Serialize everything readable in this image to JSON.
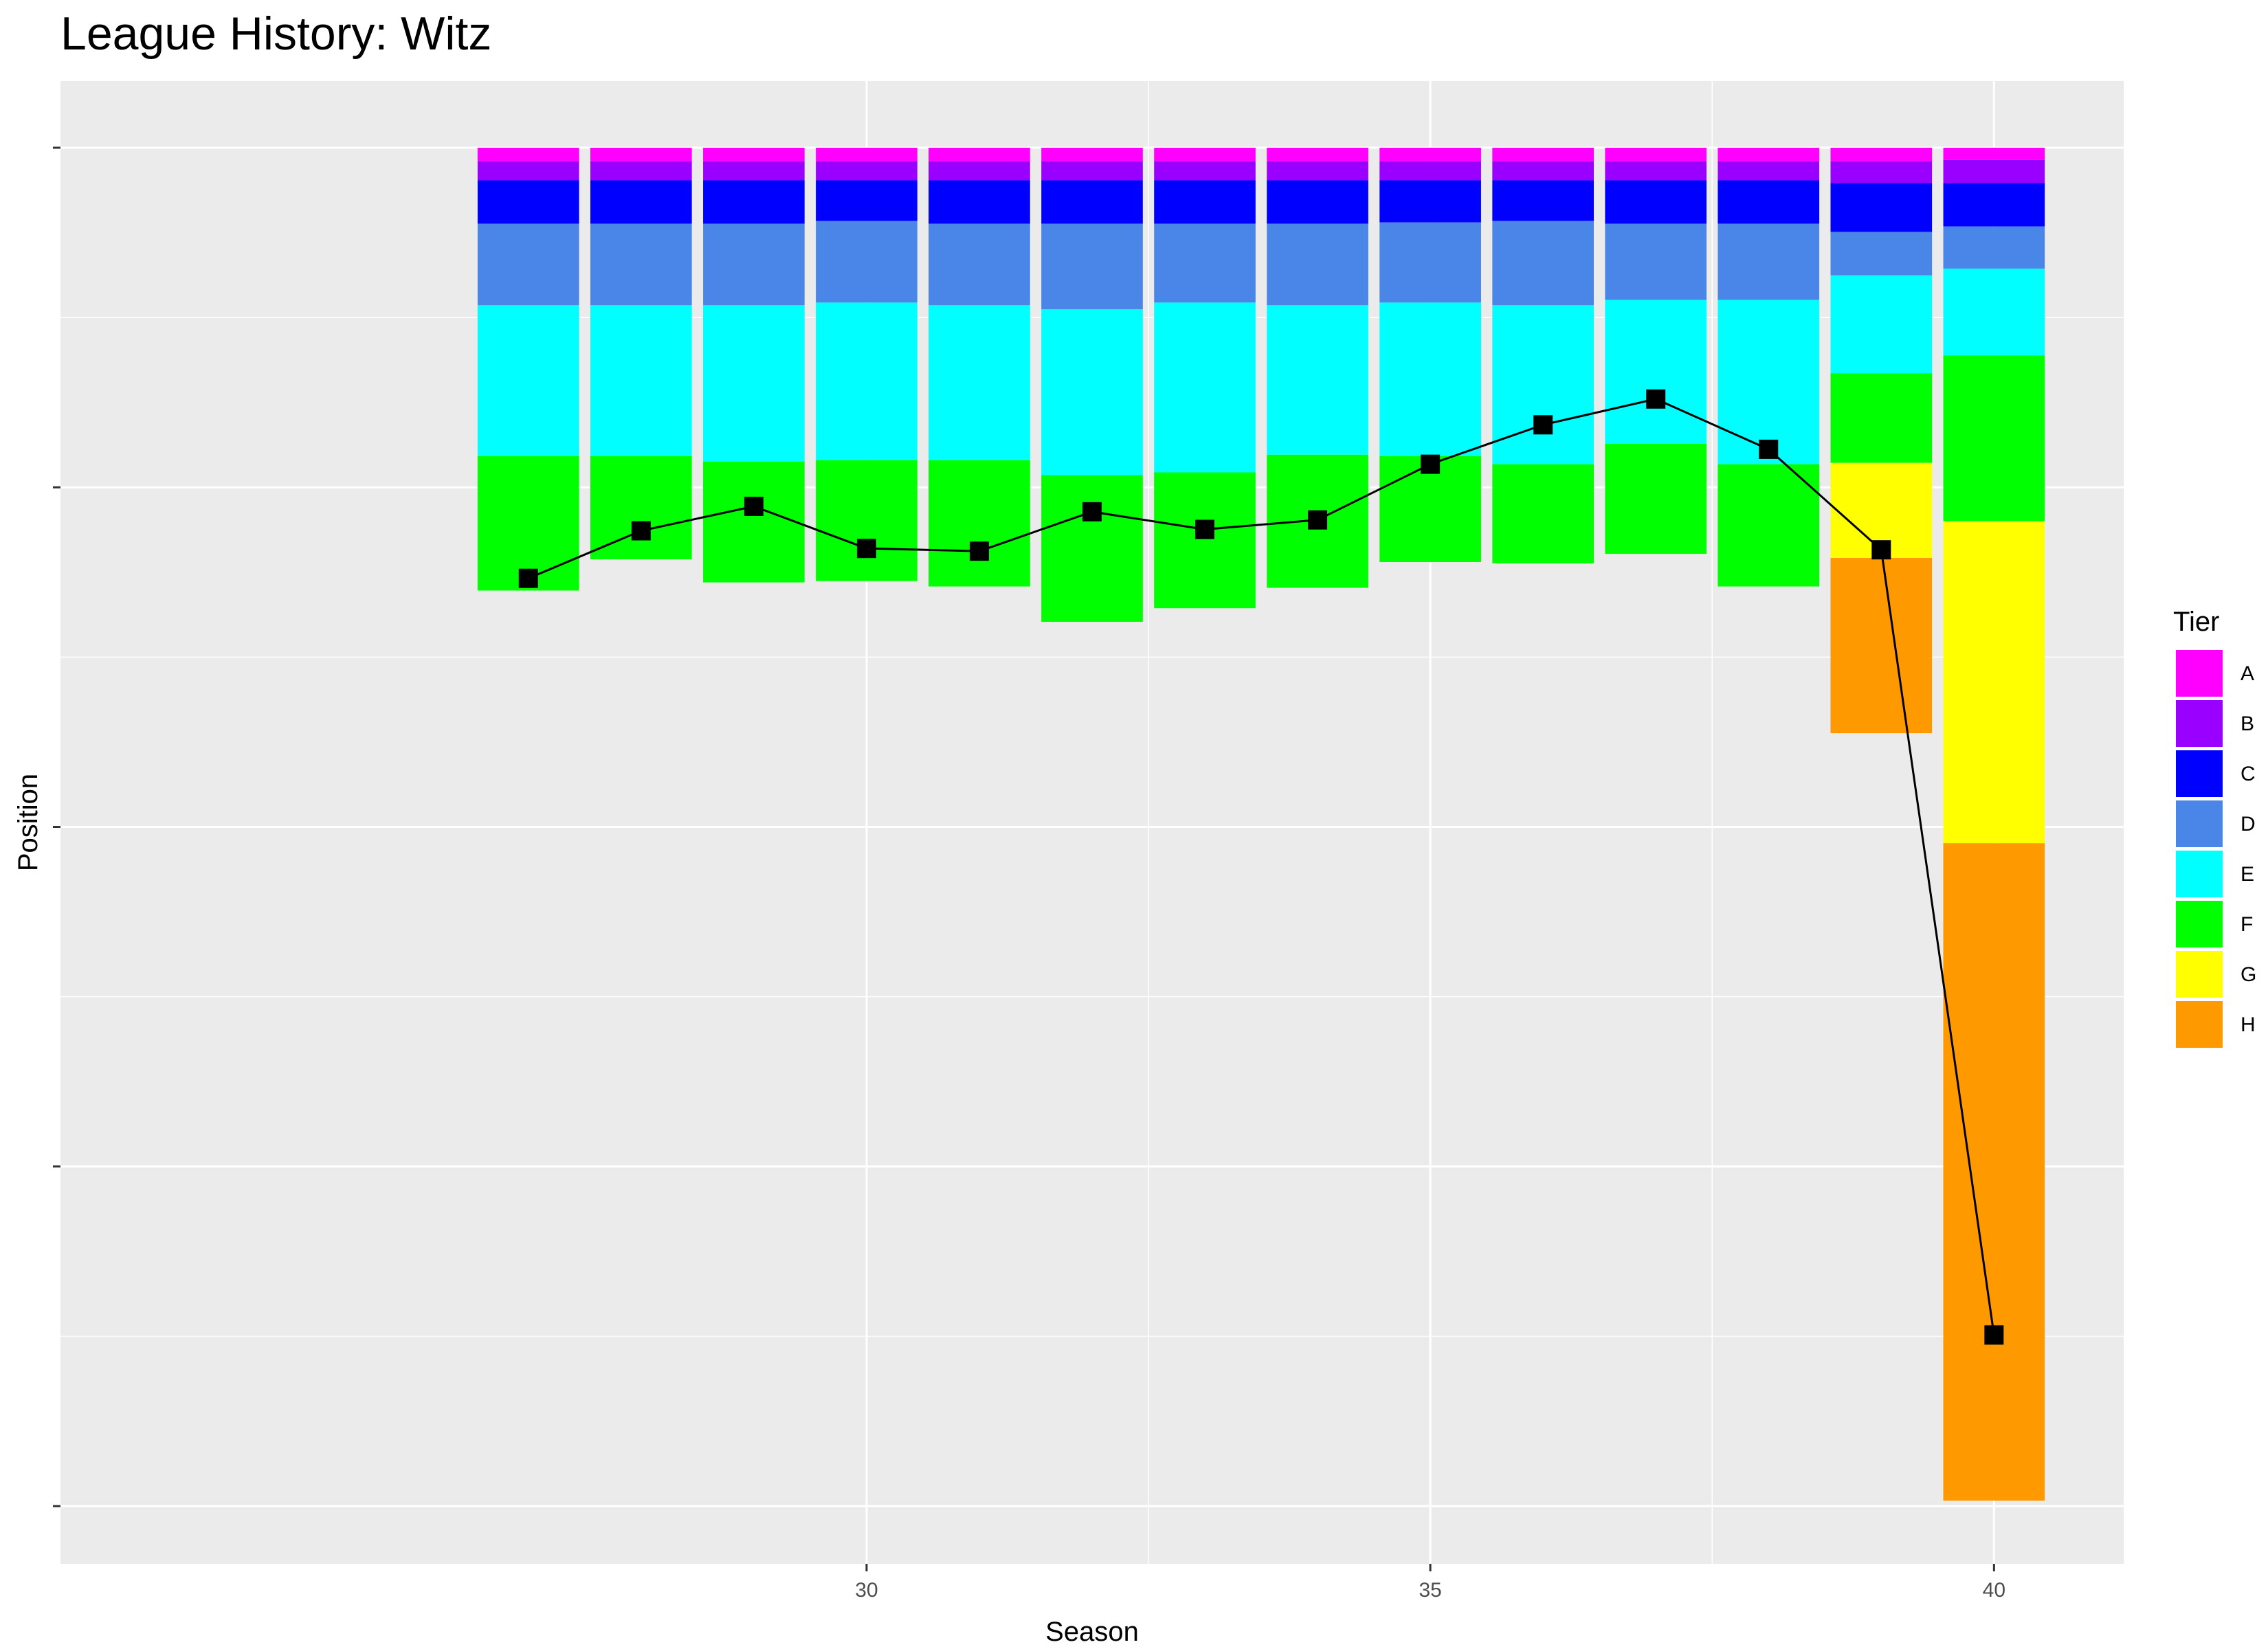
{
  "chart_data": {
    "type": "bar",
    "title": "League History: Witz",
    "xlabel": "Season",
    "ylabel": "Position",
    "x_ticks": [
      30,
      35,
      40
    ],
    "xlim": [
      22.85,
      41.15
    ],
    "ylim": [
      0,
      1.04
    ],
    "y_reversed": true,
    "y_tick_labels_visible": false,
    "grid": true,
    "legend": {
      "title": "Tier",
      "placement": "right"
    },
    "tiers": [
      "A",
      "B",
      "C",
      "D",
      "E",
      "F",
      "G",
      "H"
    ],
    "tier_colors": {
      "A": "#ff00ff",
      "B": "#9900ff",
      "C": "#0000ff",
      "D": "#4a86e8",
      "E": "#00ffff",
      "F": "#00ff00",
      "G": "#ffff00",
      "H": "#ff9900"
    },
    "line_series": {
      "seasons": [
        27,
        28,
        29,
        30,
        31,
        32,
        33,
        34,
        35,
        36,
        37,
        38,
        39,
        40
      ],
      "position": [
        0.317,
        0.282,
        0.264,
        0.295,
        0.297,
        0.268,
        0.281,
        0.274,
        0.233,
        0.204,
        0.185,
        0.222,
        0.296,
        0.874
      ]
    },
    "seasons": [
      {
        "season": 27,
        "tiers": {
          "A": [
            0,
            0.01
          ],
          "B": [
            0.01,
            0.024
          ],
          "C": [
            0.024,
            0.056
          ],
          "D": [
            0.056,
            0.116
          ],
          "E": [
            0.116,
            0.227
          ],
          "F": [
            0.227,
            0.326
          ]
        }
      },
      {
        "season": 28,
        "tiers": {
          "A": [
            0,
            0.01
          ],
          "B": [
            0.01,
            0.024
          ],
          "C": [
            0.024,
            0.056
          ],
          "D": [
            0.056,
            0.116
          ],
          "E": [
            0.116,
            0.227
          ],
          "F": [
            0.227,
            0.303
          ]
        }
      },
      {
        "season": 29,
        "tiers": {
          "A": [
            0,
            0.01
          ],
          "B": [
            0.01,
            0.024
          ],
          "C": [
            0.024,
            0.056
          ],
          "D": [
            0.056,
            0.116
          ],
          "E": [
            0.116,
            0.231
          ],
          "F": [
            0.231,
            0.32
          ]
        }
      },
      {
        "season": 30,
        "tiers": {
          "A": [
            0,
            0.01
          ],
          "B": [
            0.01,
            0.024
          ],
          "C": [
            0.024,
            0.054
          ],
          "D": [
            0.054,
            0.114
          ],
          "E": [
            0.114,
            0.23
          ],
          "F": [
            0.23,
            0.319
          ]
        }
      },
      {
        "season": 31,
        "tiers": {
          "A": [
            0,
            0.01
          ],
          "B": [
            0.01,
            0.024
          ],
          "C": [
            0.024,
            0.056
          ],
          "D": [
            0.056,
            0.116
          ],
          "E": [
            0.116,
            0.23
          ],
          "F": [
            0.23,
            0.323
          ]
        }
      },
      {
        "season": 32,
        "tiers": {
          "A": [
            0,
            0.01
          ],
          "B": [
            0.01,
            0.024
          ],
          "C": [
            0.024,
            0.056
          ],
          "D": [
            0.056,
            0.119
          ],
          "E": [
            0.119,
            0.241
          ],
          "F": [
            0.241,
            0.349
          ]
        }
      },
      {
        "season": 33,
        "tiers": {
          "A": [
            0,
            0.01
          ],
          "B": [
            0.01,
            0.024
          ],
          "C": [
            0.024,
            0.056
          ],
          "D": [
            0.056,
            0.114
          ],
          "E": [
            0.114,
            0.239
          ],
          "F": [
            0.239,
            0.339
          ]
        }
      },
      {
        "season": 34,
        "tiers": {
          "A": [
            0,
            0.01
          ],
          "B": [
            0.01,
            0.024
          ],
          "C": [
            0.024,
            0.056
          ],
          "D": [
            0.056,
            0.116
          ],
          "E": [
            0.116,
            0.226
          ],
          "F": [
            0.226,
            0.324
          ]
        }
      },
      {
        "season": 35,
        "tiers": {
          "A": [
            0,
            0.01
          ],
          "B": [
            0.01,
            0.024
          ],
          "C": [
            0.024,
            0.055
          ],
          "D": [
            0.055,
            0.114
          ],
          "E": [
            0.114,
            0.227
          ],
          "F": [
            0.227,
            0.305
          ]
        }
      },
      {
        "season": 36,
        "tiers": {
          "A": [
            0,
            0.01
          ],
          "B": [
            0.01,
            0.024
          ],
          "C": [
            0.024,
            0.054
          ],
          "D": [
            0.054,
            0.116
          ],
          "E": [
            0.116,
            0.233
          ],
          "F": [
            0.233,
            0.306
          ]
        }
      },
      {
        "season": 37,
        "tiers": {
          "A": [
            0,
            0.01
          ],
          "B": [
            0.01,
            0.024
          ],
          "C": [
            0.024,
            0.056
          ],
          "D": [
            0.056,
            0.112
          ],
          "E": [
            0.112,
            0.218
          ],
          "F": [
            0.218,
            0.299
          ]
        }
      },
      {
        "season": 38,
        "tiers": {
          "A": [
            0,
            0.01
          ],
          "B": [
            0.01,
            0.024
          ],
          "C": [
            0.024,
            0.056
          ],
          "D": [
            0.056,
            0.112
          ],
          "E": [
            0.112,
            0.233
          ],
          "F": [
            0.233,
            0.323
          ]
        }
      },
      {
        "season": 39,
        "tiers": {
          "A": [
            0,
            0.01
          ],
          "B": [
            0.01,
            0.026
          ],
          "C": [
            0.026,
            0.062
          ],
          "D": [
            0.062,
            0.094
          ],
          "E": [
            0.094,
            0.166
          ],
          "F": [
            0.166,
            0.232
          ],
          "G": [
            0.232,
            0.302
          ],
          "H": [
            0.302,
            0.431
          ]
        }
      },
      {
        "season": 40,
        "tiers": {
          "A": [
            0,
            0.009
          ],
          "B": [
            0.009,
            0.026
          ],
          "C": [
            0.026,
            0.058
          ],
          "D": [
            0.058,
            0.089
          ],
          "E": [
            0.089,
            0.153
          ],
          "F": [
            0.153,
            0.275
          ],
          "G": [
            0.275,
            0.512
          ],
          "H": [
            0.512,
            0.996
          ]
        }
      }
    ]
  }
}
